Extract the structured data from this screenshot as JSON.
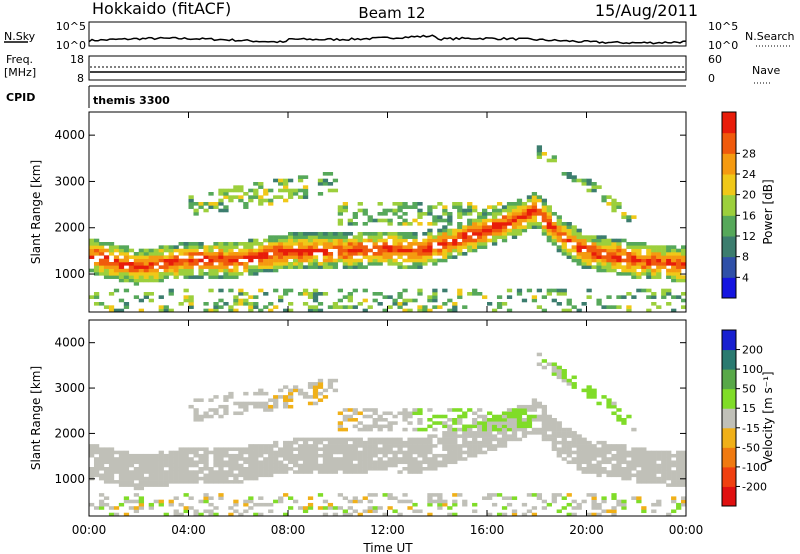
{
  "header": {
    "station": "Hokkaido (fitACF)",
    "beam": "Beam 12",
    "date": "15/Aug/2011"
  },
  "status": {
    "nsky_label": "N.Sky",
    "nsky_ticks": [
      "10^5",
      "10^0"
    ],
    "nsearch_label": "N.Search",
    "nsearch_ticks": [
      "10^5",
      "10^0"
    ],
    "freq_label": "Freq.",
    "freq_unit": "[MHz]",
    "freq_ticks": [
      "18",
      "8"
    ],
    "nave_label": "Nave",
    "nave_ticks": [
      "60",
      "0"
    ],
    "cpid_label": "CPID",
    "cpid_value": "themis 3300"
  },
  "colors": {
    "power": [
      "#1515e0",
      "#2f50a8",
      "#3c7d6e",
      "#56a85a",
      "#9ccf3c",
      "#f0c818",
      "#f59a10",
      "#f05a0c",
      "#e81c0a"
    ],
    "velocity": [
      "#1820d0",
      "#2a7a70",
      "#58a848",
      "#80dc28",
      "#c0c0b8",
      "#f0b018",
      "#f07a10",
      "#f04010",
      "#e01010"
    ],
    "ground_scatter": "#c0c0b8"
  },
  "chart_data": [
    {
      "type": "heatmap",
      "name": "power",
      "xlabel": "",
      "ylabel": "Slant Range [km]",
      "xticks": [
        "00:00",
        "04:00",
        "08:00",
        "12:00",
        "16:00",
        "20:00",
        "00:00"
      ],
      "yticks": [
        "1000",
        "2000",
        "3000",
        "4000"
      ],
      "ylim": [
        180,
        4500
      ],
      "xlim_hours": [
        0,
        24
      ],
      "colorbar_label": "Power [dB]",
      "colorbar_ticks": [
        "4",
        "8",
        "12",
        "16",
        "20",
        "24",
        "28"
      ],
      "colorbar_range": [
        0,
        30
      ],
      "main_echo_band_center_km": [
        [
          0,
          1400
        ],
        [
          2,
          1150
        ],
        [
          4,
          1300
        ],
        [
          6,
          1300
        ],
        [
          8,
          1500
        ],
        [
          10,
          1500
        ],
        [
          12,
          1550
        ],
        [
          13,
          1500
        ],
        [
          14,
          1600
        ],
        [
          16,
          1950
        ],
        [
          17,
          2150
        ],
        [
          18,
          2400
        ],
        [
          19,
          1800
        ],
        [
          20,
          1500
        ],
        [
          22,
          1300
        ],
        [
          24,
          1200
        ]
      ]
    },
    {
      "type": "heatmap",
      "name": "velocity",
      "xlabel": "Time UT",
      "ylabel": "Slant Range [km]",
      "xticks": [
        "00:00",
        "04:00",
        "08:00",
        "12:00",
        "16:00",
        "20:00",
        "00:00"
      ],
      "yticks": [
        "1000",
        "2000",
        "3000",
        "4000"
      ],
      "ylim": [
        180,
        4500
      ],
      "xlim_hours": [
        0,
        24
      ],
      "colorbar_label": "Velocity [m s⁻¹]",
      "colorbar_ticks": [
        "200",
        "100",
        "50",
        "15",
        "-15",
        "-50",
        "-100",
        "-200"
      ],
      "colorbar_range": [
        -250,
        250
      ]
    }
  ]
}
